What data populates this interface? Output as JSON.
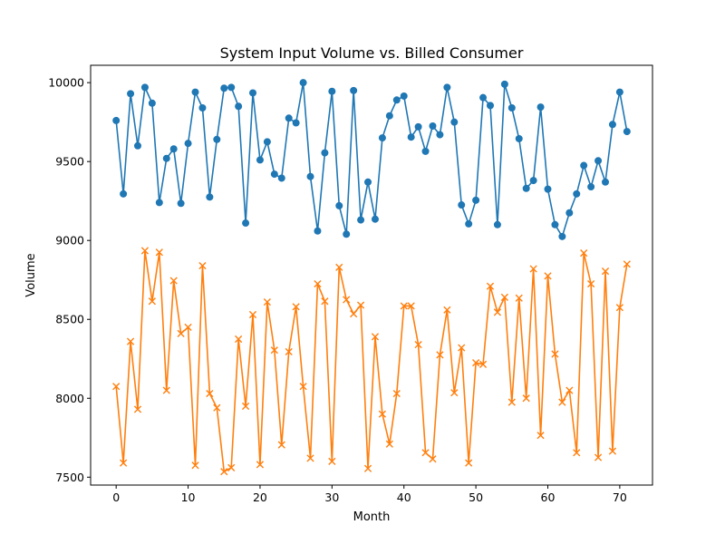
{
  "chart_data": {
    "type": "line",
    "title": "System Input Volume vs. Billed Consumer",
    "xlabel": "Month",
    "ylabel": "Volume",
    "xlim": [
      -3.55,
      74.55
    ],
    "ylim": [
      7450,
      10110
    ],
    "xticks": [
      0,
      10,
      20,
      30,
      40,
      50,
      60,
      70
    ],
    "yticks": [
      7500,
      8000,
      8500,
      9000,
      9500,
      10000
    ],
    "grid": false,
    "legend": "none",
    "x": [
      0,
      1,
      2,
      3,
      4,
      5,
      6,
      7,
      8,
      9,
      10,
      11,
      12,
      13,
      14,
      15,
      16,
      17,
      18,
      19,
      20,
      21,
      22,
      23,
      24,
      25,
      26,
      27,
      28,
      29,
      30,
      31,
      32,
      33,
      34,
      35,
      36,
      37,
      38,
      39,
      40,
      41,
      42,
      43,
      44,
      45,
      46,
      47,
      48,
      49,
      50,
      51,
      52,
      53,
      54,
      55,
      56,
      57,
      58,
      59,
      60,
      61,
      62,
      63,
      64,
      65,
      66,
      67,
      68,
      69,
      70,
      71
    ],
    "series": [
      {
        "marker": "circle",
        "color": "#1f77b4",
        "values": [
          9760,
          9295,
          9930,
          9600,
          9970,
          9870,
          9240,
          9520,
          9580,
          9235,
          9615,
          9940,
          9840,
          9275,
          9640,
          9965,
          9970,
          9850,
          9110,
          9935,
          9510,
          9625,
          9420,
          9395,
          9775,
          9745,
          10000,
          9405,
          9060,
          9555,
          9945,
          9220,
          9040,
          9950,
          9130,
          9370,
          9135,
          9650,
          9790,
          9890,
          9915,
          9655,
          9720,
          9565,
          9725,
          9670,
          9970,
          9750,
          9225,
          9105,
          9255,
          9905,
          9855,
          9100,
          9990,
          9840,
          9645,
          9330,
          9380,
          9845,
          9325,
          9100,
          9025,
          9175,
          9295,
          9475,
          9340,
          9505,
          9370,
          9735,
          9940,
          9690
        ]
      },
      {
        "marker": "x",
        "color": "#ff7f0e",
        "values": [
          8075,
          7590,
          8360,
          7930,
          8935,
          8615,
          8925,
          8050,
          8745,
          8410,
          8450,
          7575,
          8840,
          8030,
          7940,
          7535,
          7560,
          8375,
          7950,
          8530,
          7580,
          8610,
          8305,
          7705,
          8295,
          8580,
          8075,
          7620,
          8725,
          8615,
          7600,
          8830,
          8625,
          8535,
          8590,
          7555,
          8390,
          7900,
          7710,
          8030,
          8585,
          8585,
          8340,
          7655,
          7615,
          8275,
          8560,
          8035,
          8320,
          7590,
          8225,
          8215,
          8710,
          8545,
          8640,
          7975,
          8635,
          8000,
          8820,
          7765,
          8775,
          8280,
          7975,
          8050,
          7655,
          8920,
          8725,
          7625,
          8805,
          7665,
          8575,
          8850
        ]
      }
    ]
  }
}
